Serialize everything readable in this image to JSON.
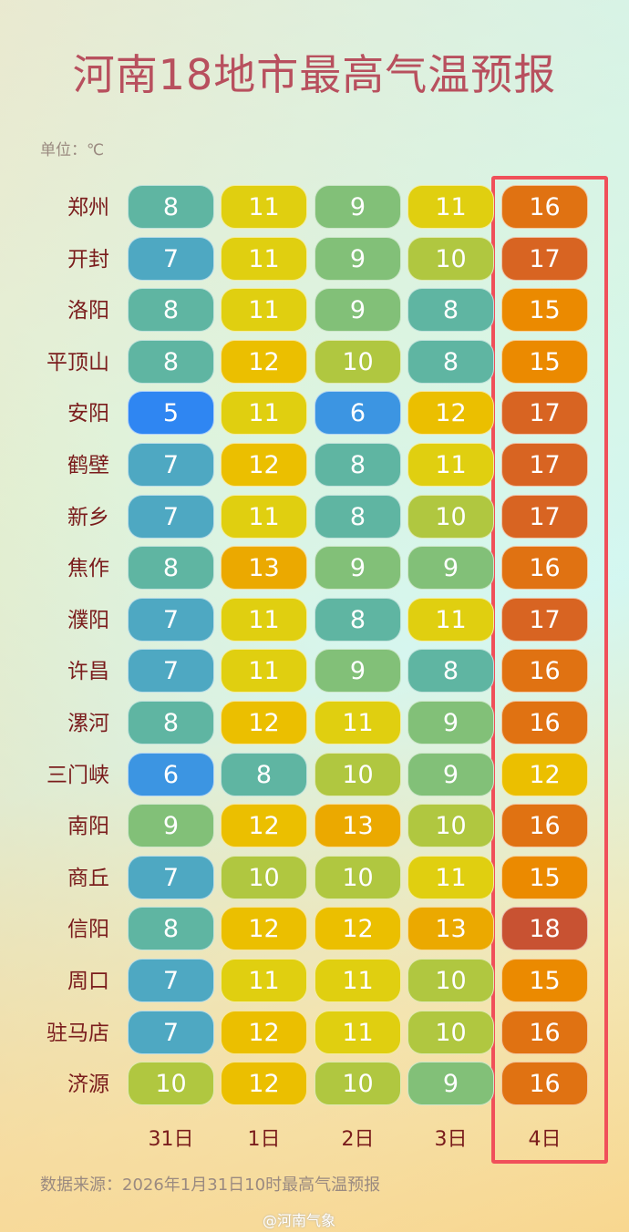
{
  "title": "河南18地市最高气温预报",
  "unit_label": "单位：℃",
  "source": "数据来源：2026年1月31日10时最高气温预报",
  "watermark": "@河南气象",
  "highlight_color": "#f0505a",
  "chart_data": {
    "type": "heatmap",
    "title": "河南18地市最高气温预报",
    "unit": "℃",
    "columns": [
      "31日",
      "1日",
      "2日",
      "3日",
      "4日"
    ],
    "highlighted_column": "4日",
    "rows": [
      {
        "city": "郑州",
        "values": [
          8,
          11,
          9,
          11,
          16
        ]
      },
      {
        "city": "开封",
        "values": [
          7,
          11,
          9,
          10,
          17
        ]
      },
      {
        "city": "洛阳",
        "values": [
          8,
          11,
          9,
          8,
          15
        ]
      },
      {
        "city": "平顶山",
        "values": [
          8,
          12,
          10,
          8,
          15
        ]
      },
      {
        "city": "安阳",
        "values": [
          5,
          11,
          6,
          12,
          17
        ]
      },
      {
        "city": "鹤壁",
        "values": [
          7,
          12,
          8,
          11,
          17
        ]
      },
      {
        "city": "新乡",
        "values": [
          7,
          11,
          8,
          10,
          17
        ]
      },
      {
        "city": "焦作",
        "values": [
          8,
          13,
          9,
          9,
          16
        ]
      },
      {
        "city": "濮阳",
        "values": [
          7,
          11,
          8,
          11,
          17
        ]
      },
      {
        "city": "许昌",
        "values": [
          7,
          11,
          9,
          8,
          16
        ]
      },
      {
        "city": "漯河",
        "values": [
          8,
          12,
          11,
          9,
          16
        ]
      },
      {
        "city": "三门峡",
        "values": [
          6,
          8,
          10,
          9,
          12
        ]
      },
      {
        "city": "南阳",
        "values": [
          9,
          12,
          13,
          10,
          16
        ]
      },
      {
        "city": "商丘",
        "values": [
          7,
          10,
          10,
          11,
          15
        ]
      },
      {
        "city": "信阳",
        "values": [
          8,
          12,
          12,
          13,
          18
        ]
      },
      {
        "city": "周口",
        "values": [
          7,
          11,
          11,
          10,
          15
        ]
      },
      {
        "city": "驻马店",
        "values": [
          7,
          12,
          11,
          10,
          16
        ]
      },
      {
        "city": "济源",
        "values": [
          10,
          12,
          10,
          9,
          16
        ]
      }
    ],
    "color_scale": {
      "5": "#2f86f2",
      "6": "#3c95e2",
      "7": "#4ea8c2",
      "8": "#5fb5a2",
      "9": "#82c078",
      "10": "#b0c740",
      "11": "#e0cf10",
      "12": "#ebbf00",
      "13": "#eba900",
      "15": "#eb8a00",
      "16": "#e07212",
      "17": "#d86422",
      "18": "#c85232"
    }
  }
}
